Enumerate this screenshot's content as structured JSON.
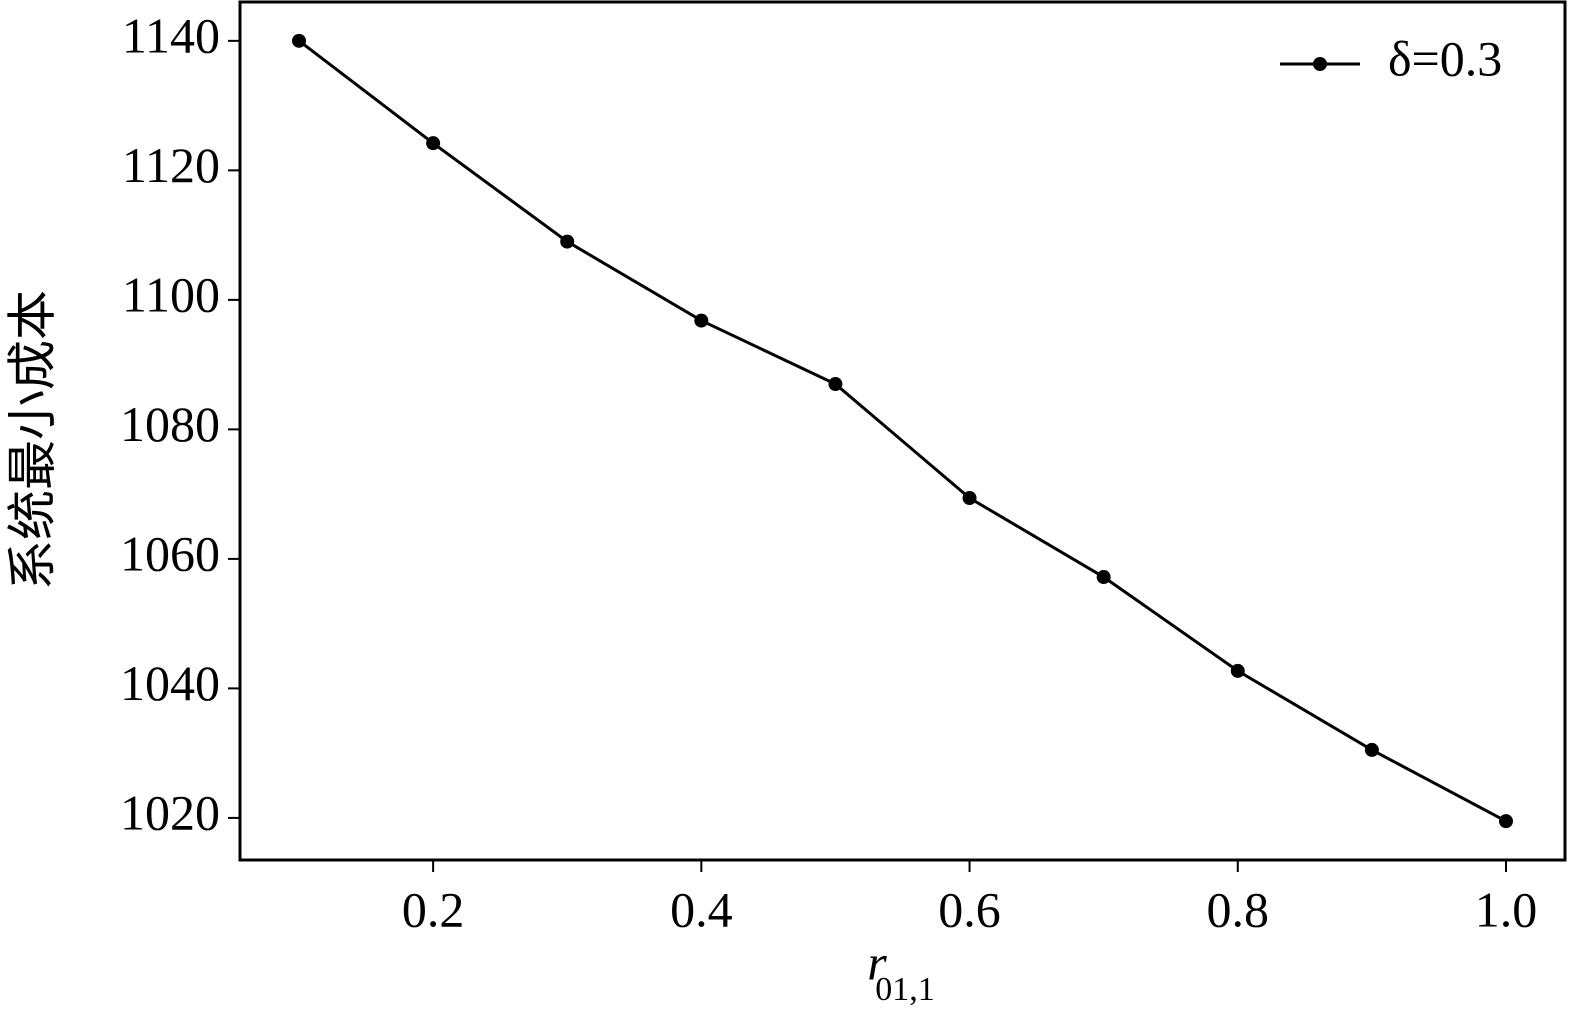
{
  "chart_data": {
    "type": "line",
    "x_label": "r",
    "x_label_subscript": "01,1",
    "y_label": "系统最小成本",
    "x": [
      0.1,
      0.2,
      0.3,
      0.4,
      0.5,
      0.6,
      0.7,
      0.8,
      0.9,
      1.0
    ],
    "series": [
      {
        "name": "δ=0.3",
        "color": "#000000",
        "values": [
          1140,
          1124.2,
          1109,
          1096.8,
          1087,
          1069.4,
          1057.2,
          1042.7,
          1030.5,
          1019.5
        ]
      }
    ],
    "xlim": [
      0.056,
      1.044
    ],
    "xticks": [
      0.2,
      0.4,
      0.6,
      0.8,
      {
        "value": 1,
        "label": "1.0"
      }
    ],
    "ylim": [
      1013.5,
      1146
    ],
    "yticks": [
      1020,
      1040,
      1060,
      1080,
      1100,
      1120,
      1140
    ],
    "legend": "upper right",
    "grid": false
  }
}
